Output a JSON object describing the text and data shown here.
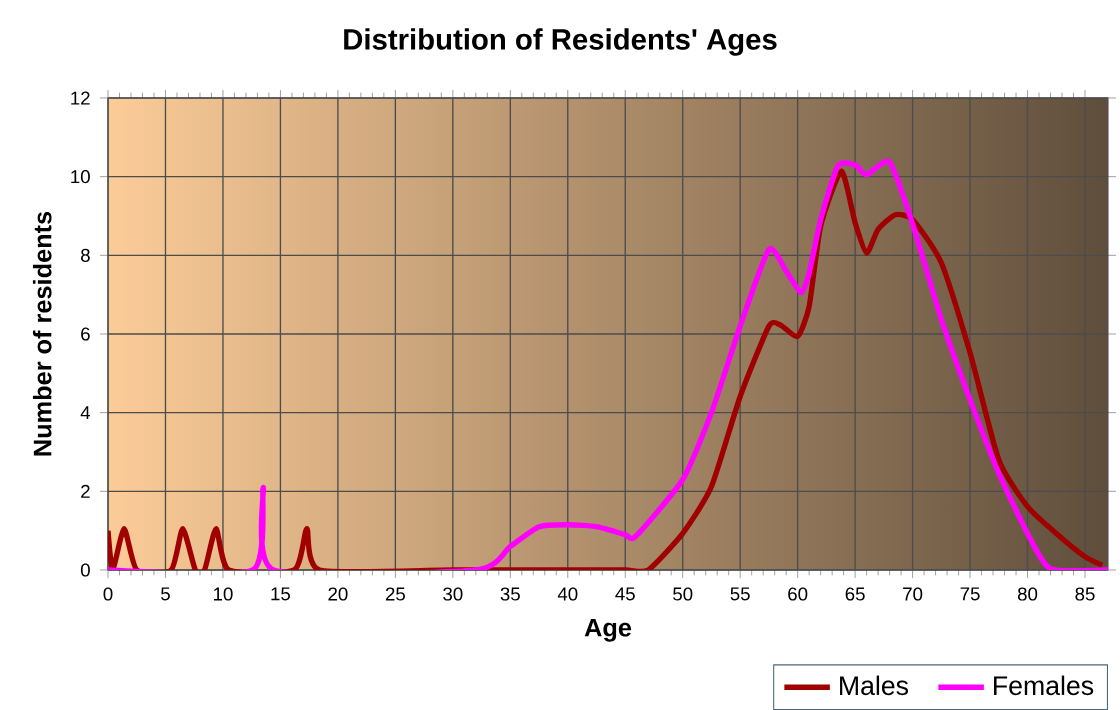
{
  "chart_data": {
    "type": "line",
    "title": "Distribution of Residents' Ages",
    "xlabel": "Age",
    "ylabel": "Number of residents",
    "xlim": [
      0,
      87
    ],
    "xticks": [
      0,
      5,
      10,
      15,
      20,
      25,
      30,
      35,
      40,
      45,
      50,
      55,
      60,
      65,
      70,
      75,
      80,
      85
    ],
    "ylim": [
      0,
      12
    ],
    "yticks": [
      0,
      2,
      4,
      6,
      8,
      10,
      12
    ],
    "grid": true,
    "legend": "bottom right",
    "marker": "none",
    "line_style": "solid",
    "series": [
      {
        "name": "Males",
        "color": "#a00000",
        "x": [
          0,
          0.4,
          1.4,
          2.5,
          5.5,
          6.5,
          7.6,
          8.4,
          9.4,
          10.5,
          16.2,
          17.3,
          18.4,
          30,
          40,
          45,
          47,
          50,
          52.5,
          55,
          57.5,
          58.5,
          60,
          61,
          62,
          63.8,
          65,
          66,
          67,
          68.5,
          70,
          72.5,
          75,
          77.5,
          80,
          82.5,
          85,
          86.5
        ],
        "values": [
          1.0,
          0,
          1.05,
          0,
          0,
          1.05,
          0,
          0,
          1.05,
          0,
          0,
          1.05,
          0,
          0,
          0,
          0,
          0,
          0.93,
          2.12,
          4.41,
          6.2,
          6.23,
          5.94,
          6.7,
          8.74,
          10.14,
          8.83,
          8.06,
          8.66,
          9.03,
          8.91,
          7.81,
          5.52,
          2.8,
          1.61,
          0.93,
          0.34,
          0.12
        ]
      },
      {
        "name": "Females",
        "color": "#ff00ff",
        "x": [
          0,
          12.6,
          13.5,
          14.4,
          32,
          35,
          37.5,
          40,
          42.5,
          45,
          45.9,
          50,
          52.5,
          55,
          57.5,
          59,
          60.3,
          61,
          62,
          63.5,
          65,
          66,
          68,
          70,
          72.5,
          75,
          77.5,
          80,
          82,
          87
        ],
        "values": [
          0,
          0,
          2.1,
          0,
          0,
          0.6,
          1.1,
          1.15,
          1.1,
          0.9,
          0.85,
          2.3,
          4.0,
          6.2,
          8.15,
          7.6,
          7.05,
          7.55,
          8.9,
          10.27,
          10.3,
          10.05,
          10.37,
          8.8,
          6.37,
          4.33,
          2.46,
          0.93,
          0.03,
          0
        ]
      }
    ]
  }
}
